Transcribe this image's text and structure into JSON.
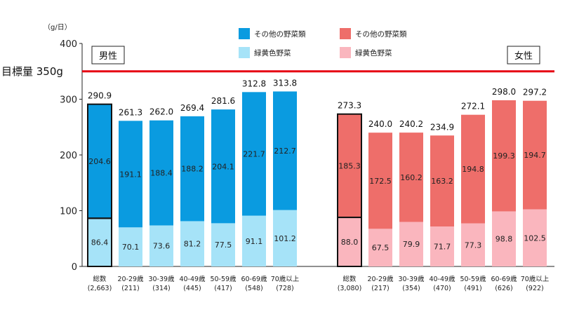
{
  "chart_data": {
    "type": "bar",
    "stacked": true,
    "y_unit": "（g/日）",
    "ylim": [
      0,
      400
    ],
    "y_ticks": [
      0,
      100,
      200,
      300,
      400
    ],
    "target": {
      "label": "目標量 350g",
      "value": 350,
      "color": "#e60012"
    },
    "legend": {
      "male_other": "その他の野菜類",
      "male_green": "緑黄色野菜",
      "female_other": "その他の野菜類",
      "female_green": "緑黄色野菜"
    },
    "colors": {
      "male_other": "#0a9be0",
      "male_green": "#a6e3f8",
      "female_other": "#ee6e6a",
      "female_green": "#fab6be"
    },
    "groups": [
      {
        "name": "男性",
        "key": "male",
        "categories": [
          {
            "label": "総数",
            "n": "(2,663)",
            "green": 86.4,
            "other": 204.6,
            "total": "290.9",
            "highlight": true
          },
          {
            "label": "20-29歳",
            "n": "(211)",
            "green": 70.1,
            "other": 191.1,
            "total": "261.3"
          },
          {
            "label": "30-39歳",
            "n": "(314)",
            "green": 73.6,
            "other": 188.4,
            "total": "262.0"
          },
          {
            "label": "40-49歳",
            "n": "(445)",
            "green": 81.2,
            "other": 188.2,
            "total": "269.4"
          },
          {
            "label": "50-59歳",
            "n": "(417)",
            "green": 77.5,
            "other": 204.1,
            "total": "281.6"
          },
          {
            "label": "60-69歳",
            "n": "(548)",
            "green": 91.1,
            "other": 221.7,
            "total": "312.8"
          },
          {
            "label": "70歳以上",
            "n": "(728)",
            "green": 101.2,
            "other": 212.7,
            "total": "313.8"
          }
        ]
      },
      {
        "name": "女性",
        "key": "female",
        "categories": [
          {
            "label": "総数",
            "n": "(3,080)",
            "green": 88.0,
            "other": 185.3,
            "total": "273.3",
            "highlight": true
          },
          {
            "label": "20-29歳",
            "n": "(217)",
            "green": 67.5,
            "other": 172.5,
            "total": "240.0"
          },
          {
            "label": "30-39歳",
            "n": "(354)",
            "green": 79.9,
            "other": 160.2,
            "total": "240.2"
          },
          {
            "label": "40-49歳",
            "n": "(470)",
            "green": 71.7,
            "other": 163.2,
            "total": "234.9"
          },
          {
            "label": "50-59歳",
            "n": "(491)",
            "green": 77.3,
            "other": 194.8,
            "total": "272.1"
          },
          {
            "label": "60-69歳",
            "n": "(626)",
            "green": 98.8,
            "other": 199.3,
            "total": "298.0"
          },
          {
            "label": "70歳以上",
            "n": "(922)",
            "green": 102.5,
            "other": 194.7,
            "total": "297.2"
          }
        ]
      }
    ]
  }
}
